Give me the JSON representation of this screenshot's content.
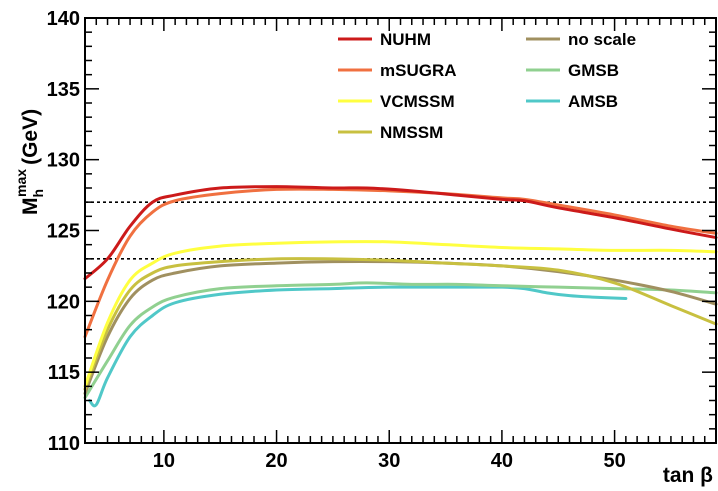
{
  "chart_data": {
    "type": "line",
    "title": "",
    "xlabel": "tan β",
    "ylabel": {
      "base": "M",
      "sub": "h",
      "sup": "max",
      "unit": "(GeV)"
    },
    "xlim": [
      3,
      59
    ],
    "ylim": [
      110,
      140
    ],
    "x_ticks": [
      10,
      20,
      30,
      40,
      50
    ],
    "y_ticks": [
      110,
      115,
      120,
      125,
      130,
      135,
      140
    ],
    "grid": false,
    "legend_position": "top-right",
    "reference_lines": [
      127,
      123
    ],
    "series": [
      {
        "name": "NUHM",
        "color": "#cc1a1a",
        "x": [
          3,
          5,
          7,
          9,
          11,
          15,
          20,
          25,
          28,
          32,
          36,
          40,
          42,
          45,
          50,
          55,
          59
        ],
        "y": [
          121.6,
          123.0,
          125.3,
          127.0,
          127.5,
          128.0,
          128.1,
          128.0,
          128.0,
          127.8,
          127.5,
          127.2,
          127.1,
          126.6,
          125.9,
          125.1,
          124.5
        ]
      },
      {
        "name": "mSUGRA",
        "color": "#f07040",
        "x": [
          3,
          5,
          7,
          9,
          11,
          15,
          20,
          25,
          30,
          35,
          40,
          42,
          45,
          50,
          55,
          59
        ],
        "y": [
          117.5,
          121.5,
          124.6,
          126.3,
          127.1,
          127.6,
          127.9,
          127.9,
          127.8,
          127.6,
          127.3,
          127.2,
          126.8,
          126.1,
          125.3,
          124.8
        ]
      },
      {
        "name": "VCMSSM",
        "color": "#ffff40",
        "x": [
          3,
          5,
          7,
          9,
          11,
          15,
          20,
          25,
          30,
          35,
          40,
          45,
          50,
          55,
          59
        ],
        "y": [
          114.0,
          118.5,
          121.5,
          122.7,
          123.4,
          123.9,
          124.1,
          124.2,
          124.2,
          124.0,
          123.8,
          123.7,
          123.6,
          123.6,
          123.5
        ]
      },
      {
        "name": "NMSSM",
        "color": "#c8c040",
        "x": [
          3,
          5,
          7,
          9,
          11,
          15,
          20,
          25,
          30,
          35,
          40,
          45,
          50,
          55,
          59
        ],
        "y": [
          113.8,
          118.0,
          120.8,
          122.0,
          122.5,
          122.8,
          123.0,
          123.0,
          122.9,
          122.7,
          122.5,
          122.2,
          121.3,
          119.7,
          118.4
        ]
      },
      {
        "name": "no scale",
        "color": "#a09060",
        "x": [
          3,
          5,
          7,
          9,
          11,
          15,
          20,
          25,
          30,
          35,
          40,
          45,
          50,
          55,
          59
        ],
        "y": [
          113.5,
          117.5,
          120.2,
          121.5,
          122.0,
          122.5,
          122.7,
          122.8,
          122.8,
          122.7,
          122.5,
          122.1,
          121.5,
          120.7,
          119.8
        ]
      },
      {
        "name": "GMSB",
        "color": "#90d090",
        "x": [
          3,
          5,
          7,
          9,
          11,
          15,
          20,
          25,
          28,
          32,
          36,
          40,
          45,
          50,
          55,
          59
        ],
        "y": [
          113.2,
          115.8,
          118.3,
          119.6,
          120.3,
          120.9,
          121.1,
          121.2,
          121.3,
          121.2,
          121.2,
          121.1,
          121.0,
          120.9,
          120.8,
          120.6
        ]
      },
      {
        "name": "AMSB",
        "color": "#50c8c8",
        "x": [
          3.4,
          4,
          5,
          7,
          9,
          11,
          15,
          20,
          25,
          30,
          35,
          40,
          42,
          44,
          46,
          48,
          51
        ],
        "y": [
          113.0,
          112.7,
          114.6,
          117.5,
          119.0,
          119.9,
          120.5,
          120.8,
          120.9,
          121.0,
          121.0,
          121.0,
          120.9,
          120.6,
          120.4,
          120.3,
          120.2
        ]
      }
    ]
  }
}
